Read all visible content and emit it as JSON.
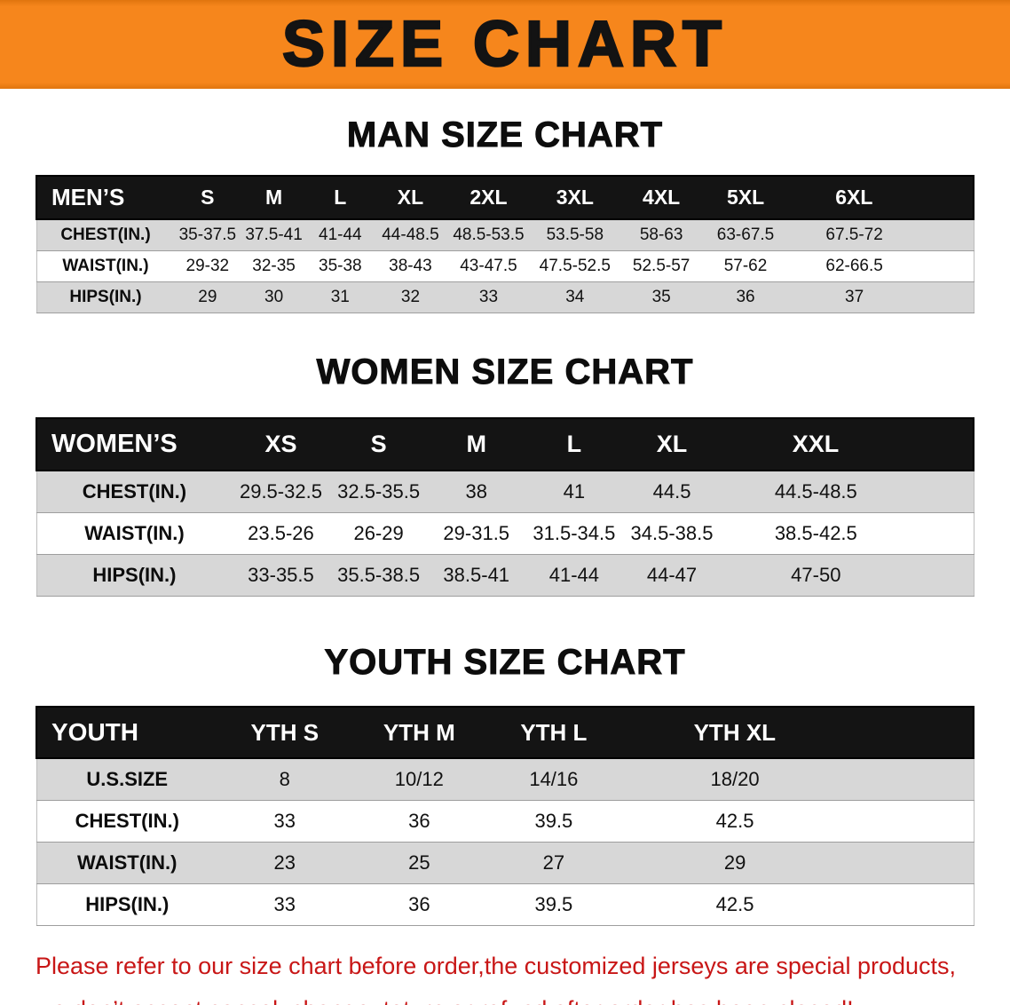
{
  "banner": {
    "title": "SIZE CHART"
  },
  "colors": {
    "banner_bg": "#f6861c",
    "table_header_bg": "#141414",
    "row_stripe": "#d7d7d7",
    "disclaimer_text": "#c81616"
  },
  "sections": [
    {
      "id": "men",
      "heading": "MAN SIZE CHART",
      "table": {
        "header": [
          "MEN’S",
          "S",
          "M",
          "L",
          "XL",
          "2XL",
          "3XL",
          "4XL",
          "5XL",
          "6XL"
        ],
        "rows": [
          [
            "CHEST(IN.)",
            "35-37.5",
            "37.5-41",
            "41-44",
            "44-48.5",
            "48.5-53.5",
            "53.5-58",
            "58-63",
            "63-67.5",
            "67.5-72"
          ],
          [
            "WAIST(IN.)",
            "29-32",
            "32-35",
            "35-38",
            "38-43",
            "43-47.5",
            "47.5-52.5",
            "52.5-57",
            "57-62",
            "62-66.5"
          ],
          [
            "HIPS(IN.)",
            "29",
            "30",
            "31",
            "32",
            "33",
            "34",
            "35",
            "36",
            "37"
          ]
        ]
      }
    },
    {
      "id": "women",
      "heading": "WOMEN SIZE CHART",
      "table": {
        "header": [
          "WOMEN’S",
          "XS",
          "S",
          "M",
          "L",
          "XL",
          "XXL"
        ],
        "rows": [
          [
            "CHEST(IN.)",
            "29.5-32.5",
            "32.5-35.5",
            "38",
            "41",
            "44.5",
            "44.5-48.5"
          ],
          [
            "WAIST(IN.)",
            "23.5-26",
            "26-29",
            "29-31.5",
            "31.5-34.5",
            "34.5-38.5",
            "38.5-42.5"
          ],
          [
            "HIPS(IN.)",
            "33-35.5",
            "35.5-38.5",
            "38.5-41",
            "41-44",
            "44-47",
            "47-50"
          ]
        ]
      }
    },
    {
      "id": "youth",
      "heading": "YOUTH SIZE CHART",
      "table": {
        "header": [
          "YOUTH",
          "YTH S",
          "YTH M",
          "YTH L",
          "YTH XL"
        ],
        "rows": [
          [
            "U.S.SIZE",
            "8",
            "10/12",
            "14/16",
            "18/20"
          ],
          [
            "CHEST(IN.)",
            "33",
            "36",
            "39.5",
            "42.5"
          ],
          [
            "WAIST(IN.)",
            "23",
            "25",
            "27",
            "29"
          ],
          [
            "HIPS(IN.)",
            "33",
            "36",
            "39.5",
            "42.5"
          ]
        ]
      }
    }
  ],
  "disclaimer": {
    "line1": "Please refer to our size chart before order,the customized jerseys are special products,",
    "line2": "we don’t accept cancel, change, teturn or refund after order has been placed!"
  }
}
